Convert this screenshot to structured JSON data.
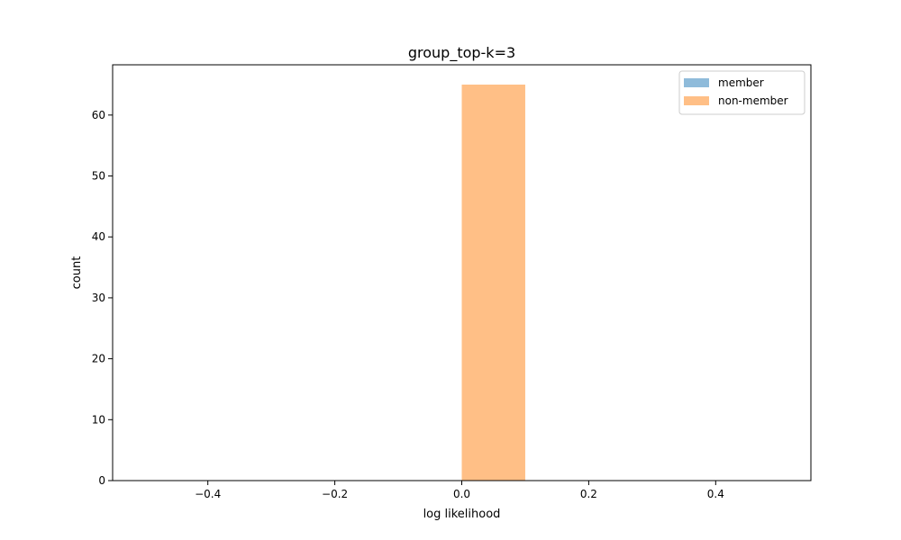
{
  "chart_data": {
    "type": "bar",
    "title": "group_top-k=3",
    "xlabel": "log likelihood",
    "ylabel": "count",
    "xlim": [
      -0.55,
      0.55
    ],
    "ylim": [
      0,
      68.25
    ],
    "xticks": [
      -0.4,
      -0.2,
      0.0,
      0.2,
      0.4
    ],
    "xtick_labels": [
      "−0.4",
      "−0.2",
      "0.0",
      "0.2",
      "0.4"
    ],
    "yticks": [
      0,
      10,
      20,
      30,
      40,
      50,
      60
    ],
    "ytick_labels": [
      "0",
      "10",
      "20",
      "30",
      "40",
      "50",
      "60"
    ],
    "grid": false,
    "legend_position": "top-right",
    "series": [
      {
        "name": "member",
        "color": "#8fbbda",
        "bins": [
          {
            "x0": 0.0,
            "x1": 0.1,
            "count": 0
          }
        ]
      },
      {
        "name": "non-member",
        "color": "#ffbf86",
        "bins": [
          {
            "x0": 0.0,
            "x1": 0.1,
            "count": 65
          }
        ]
      }
    ]
  }
}
